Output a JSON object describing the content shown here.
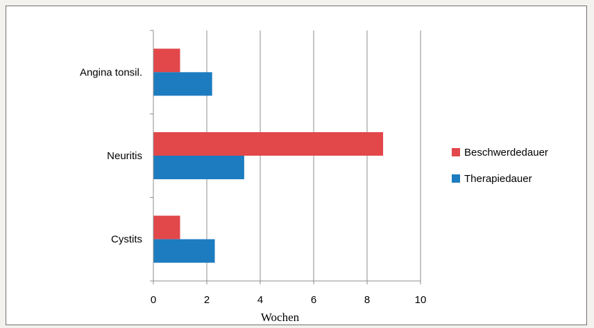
{
  "chart_data": {
    "type": "bar",
    "orientation": "horizontal",
    "categories": [
      "Angina tonsil.",
      "Neuritis",
      "Cystits"
    ],
    "series": [
      {
        "name": "Beschwerdedauer",
        "color": "#e2474a",
        "values": [
          1,
          8.6,
          1
        ]
      },
      {
        "name": "Therapiedauer",
        "color": "#1d7cc0",
        "values": [
          2.2,
          3.4,
          2.3
        ]
      }
    ],
    "xlabel": "Wochen",
    "xlim": [
      0,
      10
    ],
    "xticks": [
      0,
      2,
      4,
      6,
      8,
      10
    ],
    "grid": "vertical",
    "legend_position": "right"
  }
}
